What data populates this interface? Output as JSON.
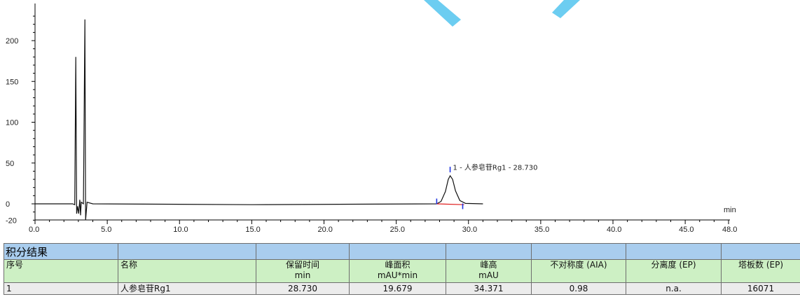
{
  "chart_data": {
    "type": "line",
    "xlabel": "min",
    "ylabel": "",
    "xlim": [
      0,
      48
    ],
    "ylim": [
      -20,
      235
    ],
    "x_ticks": [
      "0.0",
      "5.0",
      "10.0",
      "15.0",
      "20.0",
      "25.0",
      "30.0",
      "35.0",
      "40.0",
      "45.0",
      "48.0"
    ],
    "y_ticks": [
      "200",
      "150",
      "100",
      "50",
      "0",
      "-20"
    ],
    "grid": false,
    "series": [
      {
        "values": [
          [
            0.0,
            0
          ],
          [
            2.6,
            0
          ],
          [
            2.75,
            -1
          ],
          [
            2.82,
            180
          ],
          [
            2.88,
            -12
          ],
          [
            2.95,
            -3
          ],
          [
            3.02,
            -12
          ],
          [
            3.1,
            5
          ],
          [
            3.15,
            -14
          ],
          [
            3.2,
            2
          ],
          [
            3.35,
            0
          ],
          [
            3.45,
            226
          ],
          [
            3.5,
            -20
          ],
          [
            3.6,
            2
          ],
          [
            4.0,
            0
          ],
          [
            15.0,
            -1
          ],
          [
            27.8,
            0
          ],
          [
            28.1,
            3
          ],
          [
            28.4,
            15
          ],
          [
            28.6,
            30
          ],
          [
            28.73,
            34.4
          ],
          [
            28.9,
            30
          ],
          [
            29.1,
            16
          ],
          [
            29.4,
            4
          ],
          [
            29.8,
            0.5
          ],
          [
            31.0,
            0
          ]
        ]
      }
    ],
    "baseline": [
      [
        27.8,
        0
      ],
      [
        29.7,
        -1
      ]
    ],
    "markers": [
      {
        "x": 27.8,
        "y": 3
      },
      {
        "x": 28.73,
        "y": 42
      },
      {
        "x": 29.6,
        "y": -3
      }
    ],
    "peak_label": {
      "x": 28.73,
      "y": 40,
      "text": "1 - 人参皂苷Rg1 - 28.730"
    },
    "colors": {
      "trace": "#111111",
      "baseline": "#e02020",
      "marker": "#1f35e0",
      "watermark": "#5cc8ef"
    }
  },
  "results": {
    "title": "积分结果",
    "headers": [
      {
        "line1": "序号",
        "line2": ""
      },
      {
        "line1": "名称",
        "line2": ""
      },
      {
        "line1": "保留时间",
        "line2": "min"
      },
      {
        "line1": "峰面积",
        "line2": "mAU*min"
      },
      {
        "line1": "峰高",
        "line2": "mAU"
      },
      {
        "line1": "不对称度 (AIA)",
        "line2": ""
      },
      {
        "line1": "分离度 (EP)",
        "line2": ""
      },
      {
        "line1": "塔板数 (EP)",
        "line2": ""
      }
    ],
    "rows": [
      [
        "1",
        "人参皂苷Rg1",
        "28.730",
        "19.679",
        "34.371",
        "0.98",
        "n.a.",
        "16071"
      ]
    ]
  }
}
